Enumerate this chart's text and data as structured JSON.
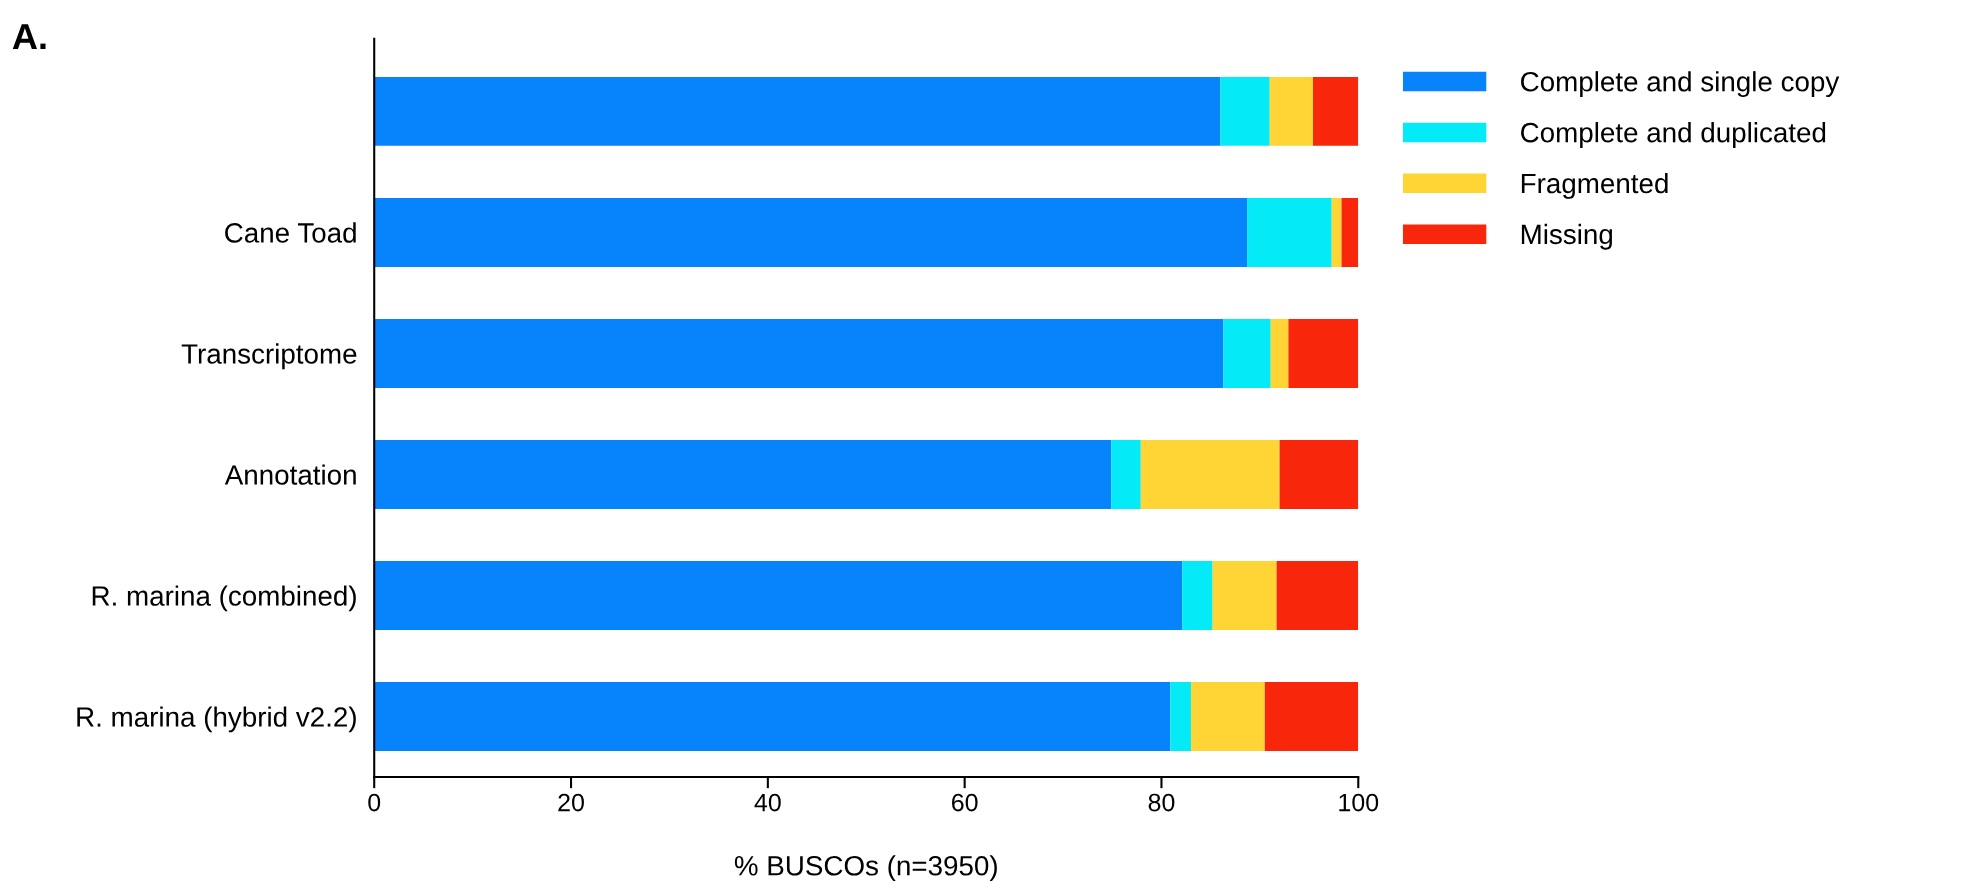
{
  "chart_data": {
    "type": "bar",
    "orientation": "horizontal",
    "stacked": true,
    "title": "A.",
    "xlabel": "% BUSCOs (n=3950)",
    "categories": [
      null,
      "Cane Toad",
      "Transcriptome",
      "Annotation",
      "R. marina (combined)",
      "R. marina (hybrid v2.2)"
    ],
    "series": [
      {
        "name": "Complete and single copy",
        "color": "#0784fc",
        "values": [
          86.0,
          88.7,
          86.3,
          74.9,
          82.1,
          80.9
        ]
      },
      {
        "name": "Complete and duplicated",
        "color": "#05eaf7",
        "values": [
          5.0,
          8.6,
          4.8,
          3.0,
          3.1,
          2.1
        ]
      },
      {
        "name": "Fragmented",
        "color": "#fed535",
        "values": [
          4.4,
          1.0,
          1.8,
          14.1,
          6.5,
          7.5
        ]
      },
      {
        "name": "Missing",
        "color": "#f8260b",
        "values": [
          4.6,
          1.7,
          7.1,
          8.0,
          8.3,
          9.5
        ]
      }
    ],
    "xlim": [
      0,
      100
    ],
    "xticks": [
      0,
      20,
      40,
      60,
      80,
      100
    ],
    "grid": false,
    "legend": "top right"
  }
}
